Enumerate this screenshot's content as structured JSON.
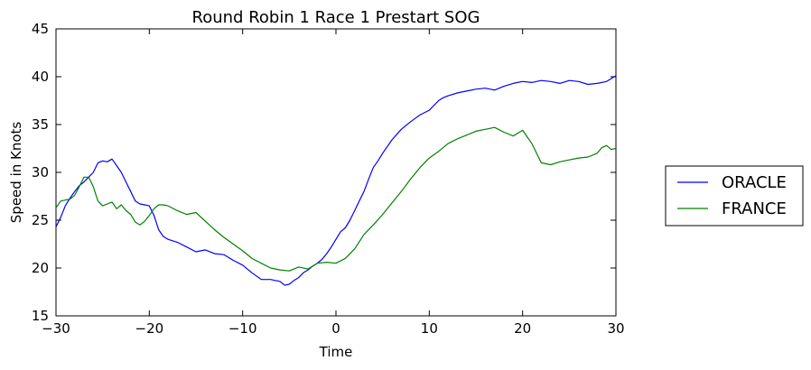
{
  "chart_data": {
    "type": "line",
    "title": "Round Robin 1 Race 1 Prestart SOG",
    "xlabel": "Time",
    "ylabel": "Speed in Knots",
    "xlim": [
      -30,
      30
    ],
    "ylim": [
      15,
      45
    ],
    "xticks": [
      -30,
      -20,
      -10,
      0,
      10,
      20,
      30
    ],
    "yticks": [
      15,
      20,
      25,
      30,
      35,
      40,
      45
    ],
    "xtick_labels": [
      "−30",
      "−20",
      "−10",
      "0",
      "10",
      "20",
      "30"
    ],
    "ytick_labels": [
      "15",
      "20",
      "25",
      "30",
      "35",
      "40",
      "45"
    ],
    "grid": false,
    "legend_position": "outside-right",
    "series": [
      {
        "name": "ORACLE",
        "color": "#0000ff",
        "x": [
          -30,
          -29.5,
          -29,
          -28.5,
          -28,
          -27.5,
          -27,
          -26.5,
          -26,
          -25.5,
          -25,
          -24.5,
          -24,
          -23.5,
          -23,
          -22.5,
          -22,
          -21.5,
          -21,
          -20.5,
          -20,
          -19.5,
          -19,
          -18.5,
          -18,
          -17,
          -16,
          -15,
          -14,
          -13,
          -12,
          -11,
          -10,
          -9,
          -8,
          -7,
          -6.5,
          -6,
          -5.5,
          -5,
          -4.5,
          -4,
          -3.5,
          -3,
          -2.5,
          -2,
          -1.5,
          -1,
          -0.5,
          0,
          0.5,
          1,
          1.5,
          2,
          2.5,
          3,
          3.5,
          4,
          4.5,
          5,
          6,
          7,
          8,
          9,
          10,
          11,
          11.5,
          12,
          13,
          14,
          15,
          16,
          17,
          18,
          19,
          20,
          21,
          22,
          23,
          24,
          25,
          26,
          27,
          28,
          29,
          30
        ],
        "y": [
          24.3,
          25.3,
          26.5,
          27.3,
          28.0,
          28.6,
          29.0,
          29.5,
          30.0,
          31.0,
          31.2,
          31.1,
          31.4,
          30.7,
          30.0,
          29.0,
          28.0,
          27.0,
          26.7,
          26.6,
          26.5,
          25.5,
          24.0,
          23.3,
          23.0,
          22.7,
          22.2,
          21.7,
          21.9,
          21.5,
          21.4,
          20.8,
          20.3,
          19.5,
          18.8,
          18.8,
          18.7,
          18.6,
          18.2,
          18.3,
          18.7,
          19.0,
          19.5,
          19.8,
          20.2,
          20.5,
          20.9,
          21.5,
          22.2,
          23.0,
          23.8,
          24.2,
          25.0,
          26.0,
          27.0,
          28.0,
          29.3,
          30.5,
          31.2,
          32.0,
          33.4,
          34.5,
          35.3,
          36.0,
          36.5,
          37.5,
          37.8,
          38.0,
          38.3,
          38.5,
          38.7,
          38.8,
          38.6,
          39.0,
          39.3,
          39.5,
          39.4,
          39.6,
          39.5,
          39.3,
          39.6,
          39.5,
          39.2,
          39.3,
          39.5,
          40.1
        ]
      },
      {
        "name": "FRANCE",
        "color": "#008000",
        "x": [
          -30,
          -29.5,
          -29,
          -28.5,
          -28,
          -27.5,
          -27,
          -26.5,
          -26,
          -25.5,
          -25,
          -24.5,
          -24,
          -23.5,
          -23,
          -22.5,
          -22,
          -21.5,
          -21,
          -20.5,
          -20,
          -19.5,
          -19,
          -18.5,
          -18,
          -17,
          -16,
          -15,
          -14,
          -13,
          -12,
          -11,
          -10,
          -9,
          -8,
          -7,
          -6,
          -5,
          -4,
          -3,
          -2,
          -1,
          0,
          1,
          2,
          3,
          4,
          5,
          6,
          7,
          8,
          9,
          10,
          11,
          12,
          13,
          14,
          15,
          16,
          17,
          18,
          19,
          20,
          21,
          22,
          23,
          24,
          25,
          26,
          27,
          28,
          28.5,
          29,
          29.5,
          30
        ],
        "y": [
          26.3,
          27.0,
          27.1,
          27.2,
          27.6,
          28.5,
          29.5,
          29.5,
          28.5,
          27.0,
          26.5,
          26.7,
          26.9,
          26.2,
          26.6,
          26.0,
          25.6,
          24.8,
          24.5,
          24.9,
          25.5,
          26.2,
          26.6,
          26.6,
          26.5,
          26.0,
          25.6,
          25.8,
          24.9,
          24.0,
          23.2,
          22.5,
          21.8,
          21.0,
          20.5,
          20.0,
          19.8,
          19.7,
          20.1,
          19.9,
          20.5,
          20.6,
          20.5,
          21.0,
          22.0,
          23.5,
          24.5,
          25.6,
          26.8,
          28.0,
          29.3,
          30.5,
          31.5,
          32.2,
          33.0,
          33.5,
          33.9,
          34.3,
          34.5,
          34.7,
          34.2,
          33.8,
          34.4,
          33.0,
          31.0,
          30.8,
          31.1,
          31.3,
          31.5,
          31.6,
          32.0,
          32.6,
          32.8,
          32.4,
          32.5
        ]
      }
    ]
  }
}
